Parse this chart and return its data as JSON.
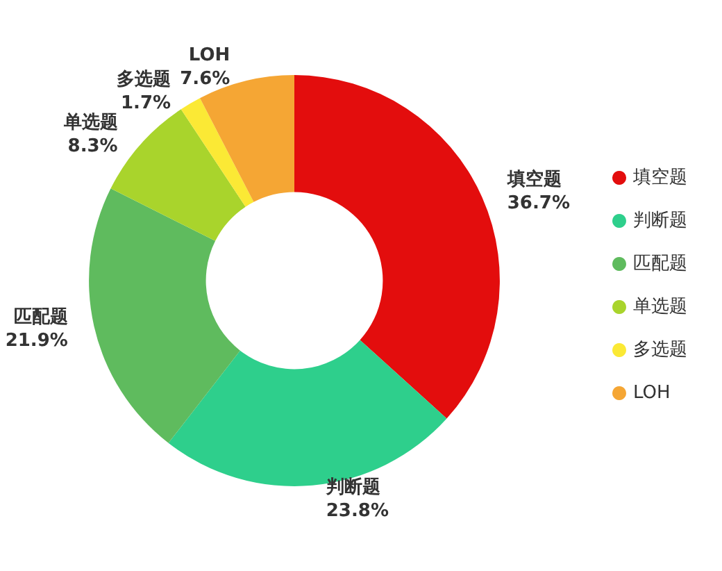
{
  "chart_data": {
    "type": "donut",
    "categories": [
      "填空题",
      "判断题",
      "匹配题",
      "单选题",
      "多选题",
      "LOH"
    ],
    "values": [
      36.7,
      23.8,
      21.9,
      8.3,
      1.7,
      7.6
    ],
    "colors": [
      "#e30d0d",
      "#2ecf8c",
      "#5fbb5e",
      "#a9d42c",
      "#fbe935",
      "#f5a634"
    ],
    "value_labels": [
      "36.7%",
      "23.8%",
      "21.9%",
      "8.3%",
      "1.7%",
      "7.6%"
    ],
    "legend": "right"
  }
}
